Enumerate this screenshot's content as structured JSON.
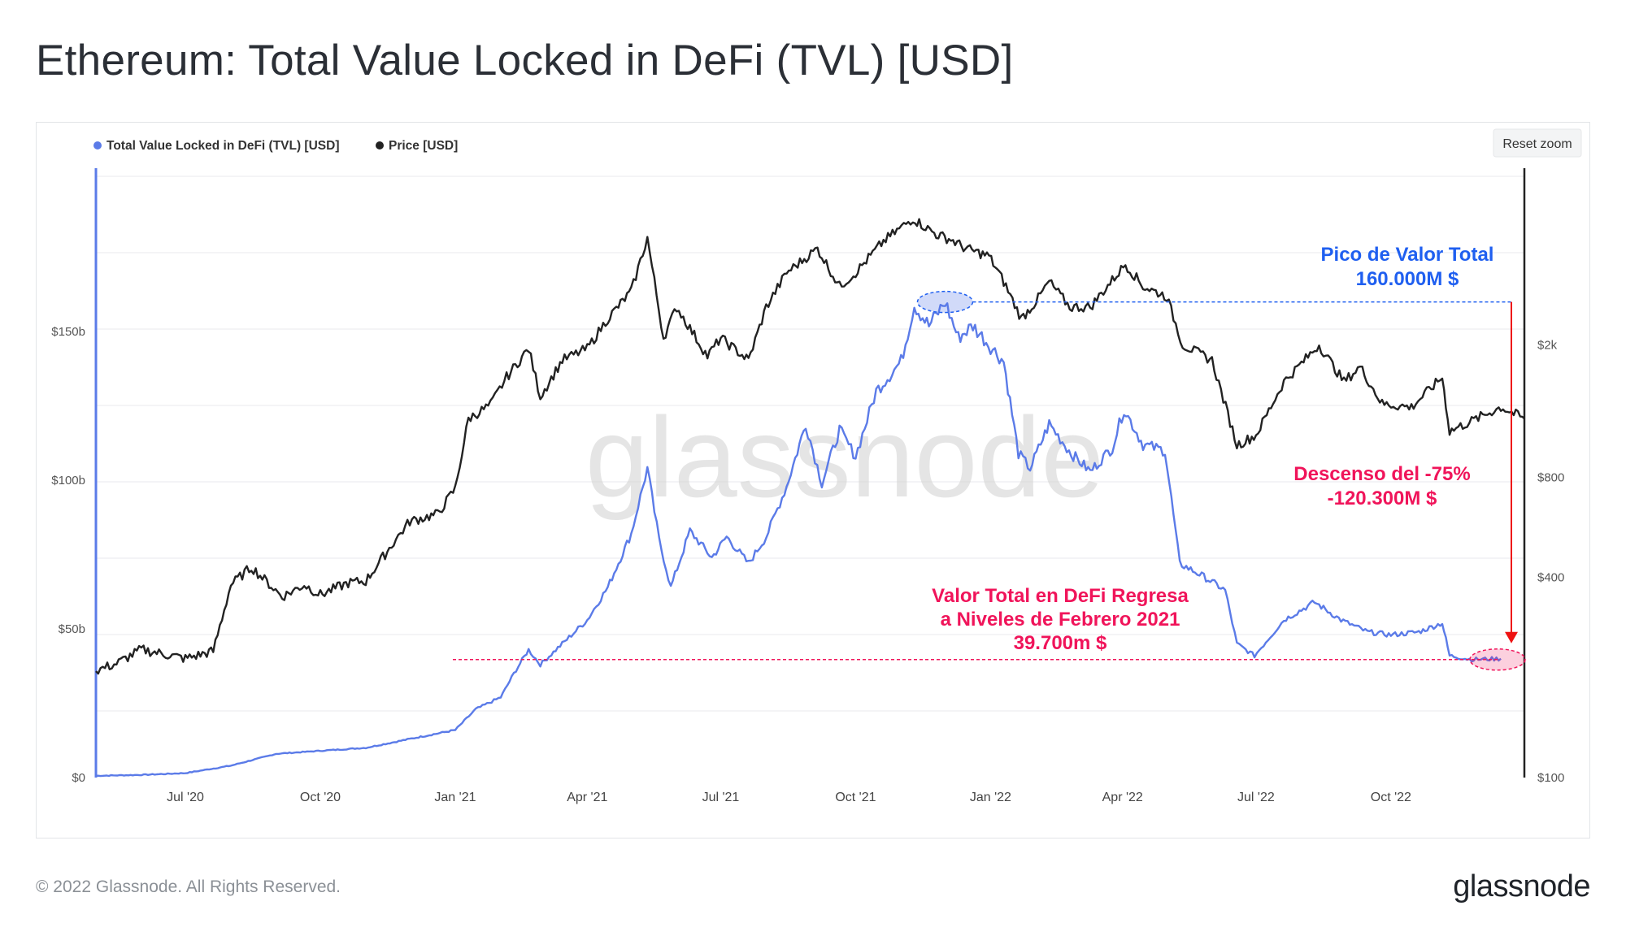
{
  "title": "Ethereum: Total Value Locked in DeFi (TVL) [USD]",
  "footer": {
    "copyright": "© 2022 Glassnode. All Rights Reserved.",
    "logo": "glassnode"
  },
  "reset_zoom": "Reset zoom",
  "watermark": "glassnode",
  "colors": {
    "tvl": "#5b7be8",
    "price": "#222222",
    "annotation_blue": "#1f5ff0",
    "annotation_red": "#f0145a",
    "arrow_red": "#ee1111",
    "grid": "#e9eaec"
  },
  "chart_data": {
    "type": "line",
    "x_range": [
      "2020-05-01",
      "2022-12-31"
    ],
    "x_ticks": [
      "Jul '20",
      "Oct '20",
      "Jan '21",
      "Apr '21",
      "Jul '21",
      "Oct '21",
      "Jan '22",
      "Apr '22",
      "Jul '22",
      "Oct '22"
    ],
    "y_left": {
      "ticks": [
        "$0",
        "$50b",
        "$100b",
        "$150b"
      ],
      "range": [
        0,
        205
      ],
      "unit": "b USD"
    },
    "y_right": {
      "ticks": [
        "$100",
        "$400",
        "$800",
        "$2k"
      ],
      "scale": "log",
      "range": [
        100,
        6800
      ],
      "unit": "USD"
    },
    "legend": [
      {
        "name": "Total Value Locked in DeFi (TVL) [USD]",
        "color": "#5b7be8"
      },
      {
        "name": "Price [USD]",
        "color": "#222222"
      }
    ],
    "series": [
      {
        "name": "Total Value Locked in DeFi (TVL) [USD]",
        "axis": "left",
        "points": [
          [
            "2020-05-01",
            0.6
          ],
          [
            "2020-06-01",
            0.9
          ],
          [
            "2020-07-01",
            1.5
          ],
          [
            "2020-08-01",
            4
          ],
          [
            "2020-09-01",
            8
          ],
          [
            "2020-10-01",
            9
          ],
          [
            "2020-11-01",
            10
          ],
          [
            "2020-12-01",
            13
          ],
          [
            "2021-01-01",
            16
          ],
          [
            "2021-01-15",
            23
          ],
          [
            "2021-02-01",
            27
          ],
          [
            "2021-02-10",
            35
          ],
          [
            "2021-02-20",
            43
          ],
          [
            "2021-02-28",
            38
          ],
          [
            "2021-03-15",
            45
          ],
          [
            "2021-04-01",
            53
          ],
          [
            "2021-04-15",
            64
          ],
          [
            "2021-05-01",
            82
          ],
          [
            "2021-05-12",
            104
          ],
          [
            "2021-05-20",
            80
          ],
          [
            "2021-05-28",
            64
          ],
          [
            "2021-06-10",
            83
          ],
          [
            "2021-06-25",
            74
          ],
          [
            "2021-07-05",
            81
          ],
          [
            "2021-07-20",
            72
          ],
          [
            "2021-08-01",
            81
          ],
          [
            "2021-08-15",
            98
          ],
          [
            "2021-08-28",
            119
          ],
          [
            "2021-09-08",
            99
          ],
          [
            "2021-09-20",
            117
          ],
          [
            "2021-10-01",
            108
          ],
          [
            "2021-10-15",
            130
          ],
          [
            "2021-11-01",
            140
          ],
          [
            "2021-11-10",
            159
          ],
          [
            "2021-11-20",
            152
          ],
          [
            "2021-12-01",
            160
          ],
          [
            "2021-12-10",
            148
          ],
          [
            "2021-12-20",
            152
          ],
          [
            "2022-01-01",
            145
          ],
          [
            "2022-01-10",
            140
          ],
          [
            "2022-01-20",
            109
          ],
          [
            "2022-01-28",
            104
          ],
          [
            "2022-02-10",
            119
          ],
          [
            "2022-02-25",
            109
          ],
          [
            "2022-03-10",
            103
          ],
          [
            "2022-03-25",
            111
          ],
          [
            "2022-04-02",
            124
          ],
          [
            "2022-04-15",
            112
          ],
          [
            "2022-04-30",
            110
          ],
          [
            "2022-05-10",
            72
          ],
          [
            "2022-05-25",
            68
          ],
          [
            "2022-06-10",
            63
          ],
          [
            "2022-06-18",
            45
          ],
          [
            "2022-06-30",
            41
          ],
          [
            "2022-07-20",
            53
          ],
          [
            "2022-08-10",
            59
          ],
          [
            "2022-08-28",
            53
          ],
          [
            "2022-09-15",
            49
          ],
          [
            "2022-10-01",
            48
          ],
          [
            "2022-10-20",
            49
          ],
          [
            "2022-11-05",
            52
          ],
          [
            "2022-11-10",
            41
          ],
          [
            "2022-11-25",
            39.7
          ],
          [
            "2022-12-15",
            40
          ]
        ]
      },
      {
        "name": "Price [USD]",
        "axis": "right",
        "points": [
          [
            "2020-05-01",
            210
          ],
          [
            "2020-05-15",
            220
          ],
          [
            "2020-06-01",
            243
          ],
          [
            "2020-07-01",
            228
          ],
          [
            "2020-07-20",
            240
          ],
          [
            "2020-08-01",
            380
          ],
          [
            "2020-08-15",
            430
          ],
          [
            "2020-09-05",
            350
          ],
          [
            "2020-09-20",
            380
          ],
          [
            "2020-10-01",
            355
          ],
          [
            "2020-10-20",
            385
          ],
          [
            "2020-11-01",
            390
          ],
          [
            "2020-11-20",
            510
          ],
          [
            "2020-12-01",
            590
          ],
          [
            "2020-12-20",
            620
          ],
          [
            "2021-01-01",
            740
          ],
          [
            "2021-01-10",
            1200
          ],
          [
            "2021-01-25",
            1320
          ],
          [
            "2021-02-05",
            1600
          ],
          [
            "2021-02-20",
            1950
          ],
          [
            "2021-02-28",
            1400
          ],
          [
            "2021-03-15",
            1800
          ],
          [
            "2021-04-01",
            1950
          ],
          [
            "2021-04-15",
            2400
          ],
          [
            "2021-05-01",
            2900
          ],
          [
            "2021-05-12",
            4200
          ],
          [
            "2021-05-23",
            2100
          ],
          [
            "2021-06-01",
            2600
          ],
          [
            "2021-06-22",
            1850
          ],
          [
            "2021-07-01",
            2100
          ],
          [
            "2021-07-20",
            1800
          ],
          [
            "2021-08-01",
            2600
          ],
          [
            "2021-08-15",
            3300
          ],
          [
            "2021-09-05",
            3900
          ],
          [
            "2021-09-20",
            3000
          ],
          [
            "2021-10-01",
            3300
          ],
          [
            "2021-10-20",
            4100
          ],
          [
            "2021-11-09",
            4800
          ],
          [
            "2021-11-25",
            4300
          ],
          [
            "2021-12-05",
            4150
          ],
          [
            "2021-12-15",
            3900
          ],
          [
            "2021-12-31",
            3700
          ],
          [
            "2022-01-10",
            3100
          ],
          [
            "2022-01-22",
            2400
          ],
          [
            "2022-02-01",
            2700
          ],
          [
            "2022-02-10",
            3100
          ],
          [
            "2022-02-24",
            2600
          ],
          [
            "2022-03-10",
            2600
          ],
          [
            "2022-04-03",
            3500
          ],
          [
            "2022-04-15",
            3000
          ],
          [
            "2022-05-01",
            2800
          ],
          [
            "2022-05-12",
            2000
          ],
          [
            "2022-06-01",
            1800
          ],
          [
            "2022-06-18",
            1000
          ],
          [
            "2022-07-01",
            1070
          ],
          [
            "2022-07-20",
            1550
          ],
          [
            "2022-08-13",
            2000
          ],
          [
            "2022-08-30",
            1550
          ],
          [
            "2022-09-10",
            1720
          ],
          [
            "2022-09-25",
            1330
          ],
          [
            "2022-10-15",
            1300
          ],
          [
            "2022-11-05",
            1600
          ],
          [
            "2022-11-10",
            1100
          ],
          [
            "2022-11-25",
            1180
          ],
          [
            "2022-12-15",
            1300
          ],
          [
            "2022-12-31",
            1200
          ]
        ]
      }
    ],
    "annotations": [
      {
        "id": "peak",
        "lines": [
          "Pico de Valor Total",
          "160.000M $"
        ],
        "date": "2021-12-01",
        "value": 160
      },
      {
        "id": "drop",
        "lines": [
          "Descenso del -75%",
          "-120.300M $"
        ]
      },
      {
        "id": "return",
        "lines": [
          "Valor Total en DeFi Regresa",
          "a Niveles de Febrero 2021",
          "39.700m $"
        ],
        "value": 39.7
      }
    ]
  }
}
